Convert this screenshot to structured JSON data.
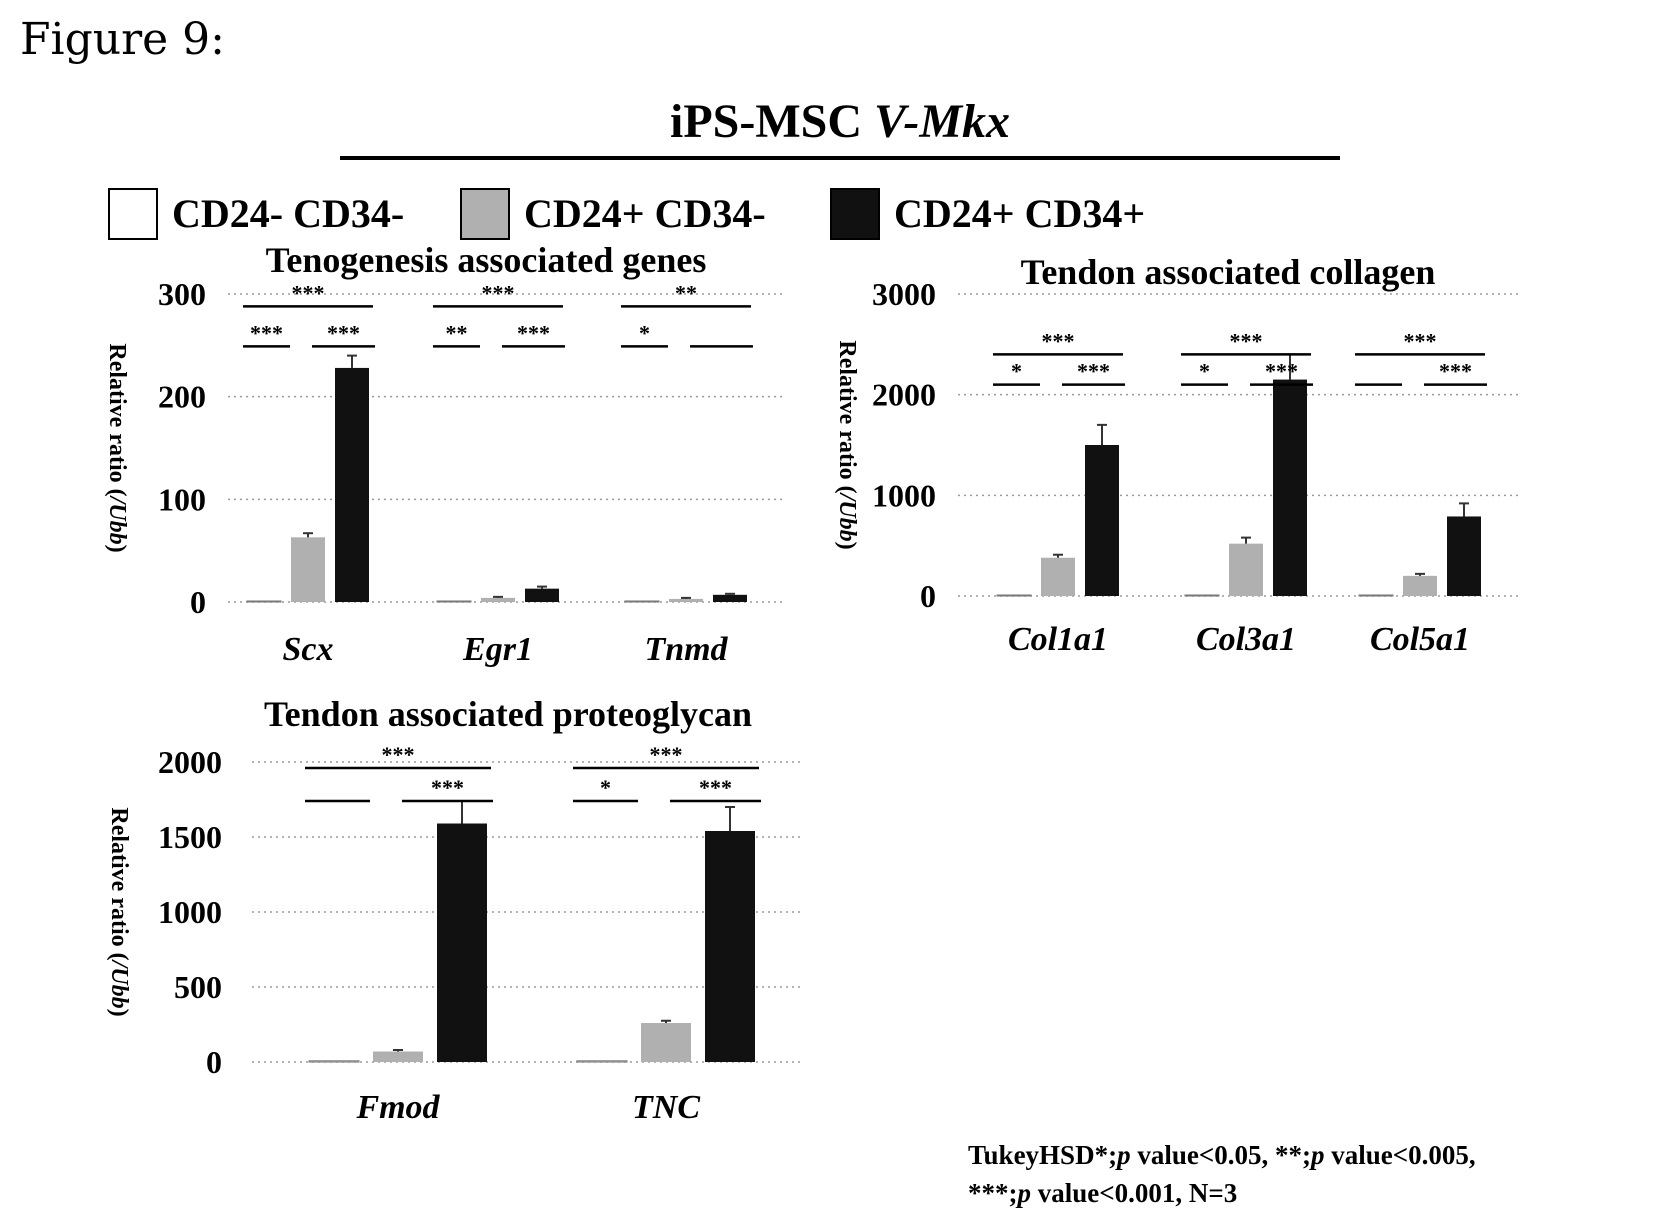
{
  "figure_label": "Figure 9:",
  "main_title": {
    "prefix": "iPS-MSC ",
    "italic": "V-Mkx"
  },
  "legend": [
    {
      "label": "CD24- CD34-",
      "color": "#ffffff"
    },
    {
      "label": "CD24+ CD34-",
      "color": "#b0b0b0"
    },
    {
      "label": "CD24+ CD34+",
      "color": "#111111"
    }
  ],
  "footnote": {
    "line1": [
      {
        "t": "TukeyHSD*;",
        "i": false
      },
      {
        "t": "p",
        "i": true
      },
      {
        "t": " value<0.05, **;",
        "i": false
      },
      {
        "t": "p",
        "i": true
      },
      {
        "t": " value<0.005,",
        "i": false
      }
    ],
    "line2": [
      {
        "t": "***;",
        "i": false
      },
      {
        "t": "p",
        "i": true
      },
      {
        "t": " value<0.001,  N=3",
        "i": false
      }
    ]
  },
  "chart_data": [
    {
      "type": "bar",
      "title": "Tenogenesis associated genes",
      "ylabel": "Relative ratio (/Ubb)",
      "ylim": [
        0,
        300
      ],
      "yticks": [
        0,
        100,
        200,
        300
      ],
      "grid": true,
      "categories": [
        "Scx",
        "Egr1",
        "Tnmd"
      ],
      "series": [
        {
          "name": "CD24- CD34-",
          "values": [
            1,
            1,
            1
          ]
        },
        {
          "name": "CD24+ CD34-",
          "values": [
            63,
            4,
            3
          ]
        },
        {
          "name": "CD24+ CD34+",
          "values": [
            228,
            13,
            7
          ]
        }
      ],
      "errors": [
        [
          0,
          0,
          0
        ],
        [
          4,
          1,
          1
        ],
        [
          12,
          2,
          1
        ]
      ],
      "significance": [
        {
          "group": 0,
          "from": 0,
          "to": 2,
          "label": "***",
          "level": 2
        },
        {
          "group": 0,
          "from": 0,
          "to": 1,
          "label": "***",
          "level": 1
        },
        {
          "group": 0,
          "from": 1,
          "to": 2,
          "label": "***",
          "level": 1
        },
        {
          "group": 1,
          "from": 0,
          "to": 2,
          "label": "***",
          "level": 2
        },
        {
          "group": 1,
          "from": 0,
          "to": 1,
          "label": "**",
          "level": 1
        },
        {
          "group": 1,
          "from": 1,
          "to": 2,
          "label": "***",
          "level": 1
        },
        {
          "group": 2,
          "from": 0,
          "to": 2,
          "label": "**",
          "level": 2
        },
        {
          "group": 2,
          "from": 0,
          "to": 1,
          "label": "*",
          "level": 1
        },
        {
          "group": 2,
          "from": 1,
          "to": 2,
          "label": "",
          "level": 1
        }
      ]
    },
    {
      "type": "bar",
      "title": "Tendon associated collagen",
      "ylabel": "Relative ratio (/Ubb)",
      "ylim": [
        0,
        3000
      ],
      "yticks": [
        0,
        1000,
        2000,
        3000
      ],
      "grid": true,
      "categories": [
        "Col1a1",
        "Col3a1",
        "Col5a1"
      ],
      "series": [
        {
          "name": "CD24- CD34-",
          "values": [
            10,
            10,
            10
          ]
        },
        {
          "name": "CD24+ CD34-",
          "values": [
            380,
            520,
            200
          ]
        },
        {
          "name": "CD24+ CD34+",
          "values": [
            1500,
            2150,
            790
          ]
        }
      ],
      "errors": [
        [
          0,
          0,
          0
        ],
        [
          30,
          60,
          20
        ],
        [
          200,
          250,
          130
        ]
      ],
      "significance": [
        {
          "group": 0,
          "from": 0,
          "to": 2,
          "label": "***",
          "level": 2
        },
        {
          "group": 0,
          "from": 0,
          "to": 1,
          "label": "*",
          "level": 1
        },
        {
          "group": 0,
          "from": 1,
          "to": 2,
          "label": "***",
          "level": 1
        },
        {
          "group": 1,
          "from": 0,
          "to": 2,
          "label": "***",
          "level": 2
        },
        {
          "group": 1,
          "from": 0,
          "to": 1,
          "label": "*",
          "level": 1
        },
        {
          "group": 1,
          "from": 1,
          "to": 2,
          "label": "***",
          "level": 1
        },
        {
          "group": 2,
          "from": 0,
          "to": 2,
          "label": "***",
          "level": 2
        },
        {
          "group": 2,
          "from": 0,
          "to": 1,
          "label": "",
          "level": 1
        },
        {
          "group": 2,
          "from": 1,
          "to": 2,
          "label": "***",
          "level": 1
        }
      ]
    },
    {
      "type": "bar",
      "title": "Tendon associated proteoglycan",
      "ylabel": "Relative ratio (/Ubb)",
      "ylim": [
        0,
        2000
      ],
      "yticks": [
        0,
        500,
        1000,
        1500,
        2000
      ],
      "grid": true,
      "categories": [
        "Fmod",
        "TNC"
      ],
      "series": [
        {
          "name": "CD24- CD34-",
          "values": [
            8,
            8
          ]
        },
        {
          "name": "CD24+ CD34-",
          "values": [
            70,
            260
          ]
        },
        {
          "name": "CD24+ CD34+",
          "values": [
            1590,
            1540
          ]
        }
      ],
      "errors": [
        [
          0,
          0
        ],
        [
          10,
          15
        ],
        [
          150,
          160
        ]
      ],
      "significance": [
        {
          "group": 0,
          "from": 0,
          "to": 2,
          "label": "***",
          "level": 2
        },
        {
          "group": 0,
          "from": 0,
          "to": 1,
          "label": "",
          "level": 1
        },
        {
          "group": 0,
          "from": 1,
          "to": 2,
          "label": "***",
          "level": 1
        },
        {
          "group": 1,
          "from": 0,
          "to": 2,
          "label": "***",
          "level": 2
        },
        {
          "group": 1,
          "from": 0,
          "to": 1,
          "label": "*",
          "level": 1
        },
        {
          "group": 1,
          "from": 1,
          "to": 2,
          "label": "***",
          "level": 1
        }
      ]
    }
  ]
}
